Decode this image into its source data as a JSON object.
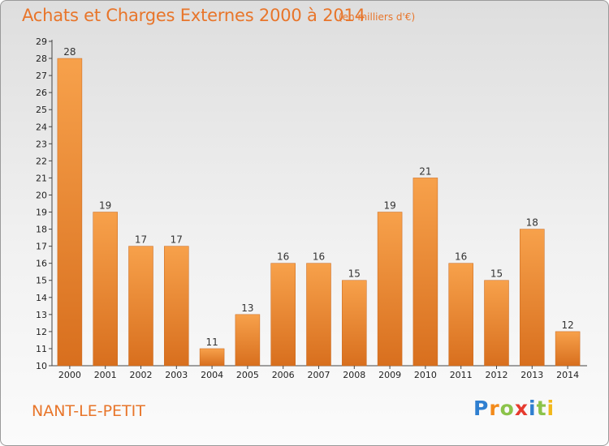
{
  "header": {
    "title": "Achats et Charges Externes 2000 à 2014",
    "subtitle": "(en milliers d'€)"
  },
  "footer": {
    "commune": "NANT-LE-PETIT",
    "brand": "Proxiti"
  },
  "colors": {
    "accent": "#e8752a",
    "bar_light": "#f7a14b",
    "bar_dark": "#d86f1e"
  },
  "chart_data": {
    "type": "bar",
    "title": "Achats et Charges Externes 2000 à 2014",
    "subtitle": "(en milliers d'€)",
    "xlabel": "",
    "ylabel": "",
    "categories": [
      "2000",
      "2001",
      "2002",
      "2003",
      "2004",
      "2005",
      "2006",
      "2007",
      "2008",
      "2009",
      "2010",
      "2011",
      "2012",
      "2013",
      "2014"
    ],
    "values": [
      28,
      19,
      17,
      17,
      11,
      13,
      16,
      16,
      15,
      19,
      21,
      16,
      15,
      18,
      12
    ],
    "ylim": [
      10,
      29
    ],
    "yticks": [
      10,
      11,
      12,
      13,
      14,
      15,
      16,
      17,
      18,
      19,
      20,
      21,
      22,
      23,
      24,
      25,
      26,
      27,
      28,
      29
    ],
    "grid": false,
    "legend": "none"
  }
}
